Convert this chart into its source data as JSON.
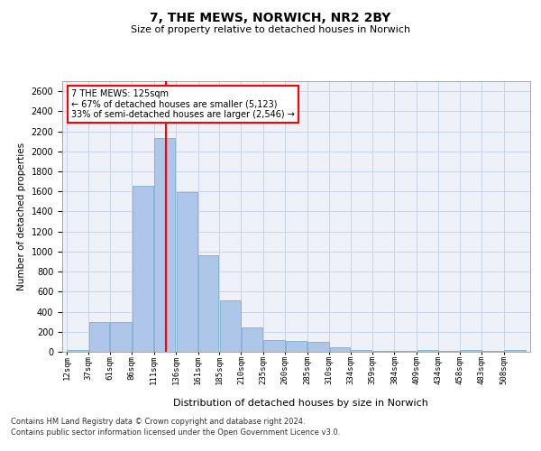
{
  "title": "7, THE MEWS, NORWICH, NR2 2BY",
  "subtitle": "Size of property relative to detached houses in Norwich",
  "xlabel": "Distribution of detached houses by size in Norwich",
  "ylabel": "Number of detached properties",
  "bar_color": "#aec6e8",
  "bar_edge_color": "#7bafd4",
  "grid_color": "#c8d4e8",
  "annotation_text": "7 THE MEWS: 125sqm\n← 67% of detached houses are smaller (5,123)\n33% of semi-detached houses are larger (2,546) →",
  "vline_x": 125,
  "vline_color": "red",
  "footer_line1": "Contains HM Land Registry data © Crown copyright and database right 2024.",
  "footer_line2": "Contains public sector information licensed under the Open Government Licence v3.0.",
  "categories": [
    "12sqm",
    "37sqm",
    "61sqm",
    "86sqm",
    "111sqm",
    "136sqm",
    "161sqm",
    "185sqm",
    "210sqm",
    "235sqm",
    "260sqm",
    "285sqm",
    "310sqm",
    "334sqm",
    "359sqm",
    "384sqm",
    "409sqm",
    "434sqm",
    "458sqm",
    "483sqm",
    "508sqm"
  ],
  "bin_edges": [
    12,
    37,
    61,
    86,
    111,
    136,
    161,
    185,
    210,
    235,
    260,
    285,
    310,
    334,
    359,
    384,
    409,
    434,
    458,
    483,
    508,
    533
  ],
  "values": [
    20,
    300,
    300,
    1660,
    2130,
    1590,
    960,
    510,
    245,
    120,
    110,
    100,
    45,
    15,
    10,
    5,
    20,
    5,
    20,
    5,
    20
  ],
  "ylim": [
    0,
    2700
  ],
  "yticks": [
    0,
    200,
    400,
    600,
    800,
    1000,
    1200,
    1400,
    1600,
    1800,
    2000,
    2200,
    2400,
    2600
  ]
}
